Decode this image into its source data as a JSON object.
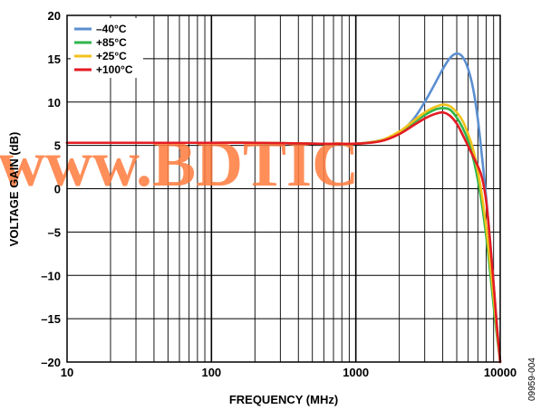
{
  "chart_data": {
    "type": "line",
    "xlabel": "FREQUENCY (MHz)",
    "ylabel": "VOLTAGE GAIN (dB)",
    "xscale": "log",
    "xlim": [
      10,
      10000
    ],
    "ylim": [
      -20,
      20
    ],
    "xticks": [
      10,
      100,
      1000,
      10000
    ],
    "xtick_labels": [
      "10",
      "100",
      "1000",
      "10000"
    ],
    "yticks": [
      20,
      15,
      10,
      5,
      0,
      -5,
      -10,
      -15,
      -20
    ],
    "ytick_labels": [
      "20",
      "15",
      "10",
      "5",
      "0",
      "–5",
      "–10",
      "–15",
      "–20"
    ],
    "grid": true,
    "legend_position": "top-left",
    "series": [
      {
        "name": "–40°C",
        "color": "#5b8fd0",
        "points": [
          [
            10,
            5.3
          ],
          [
            100,
            5.3
          ],
          [
            200,
            5.3
          ],
          [
            500,
            5.2
          ],
          [
            1000,
            5.2
          ],
          [
            1500,
            5.6
          ],
          [
            2000,
            6.5
          ],
          [
            2500,
            8.0
          ],
          [
            3000,
            10.0
          ],
          [
            3500,
            12.0
          ],
          [
            4000,
            13.8
          ],
          [
            4500,
            15.1
          ],
          [
            5000,
            15.6
          ],
          [
            5500,
            15.2
          ],
          [
            6000,
            13.8
          ],
          [
            6500,
            11.5
          ],
          [
            7000,
            8.0
          ],
          [
            7500,
            3.5
          ],
          [
            8000,
            -1.0
          ],
          [
            8500,
            -6.0
          ],
          [
            9000,
            -11.0
          ],
          [
            9500,
            -16.0
          ],
          [
            10000,
            -20.0
          ]
        ]
      },
      {
        "name": "+85°C",
        "color": "#2fb54a",
        "points": [
          [
            10,
            5.3
          ],
          [
            100,
            5.3
          ],
          [
            200,
            5.3
          ],
          [
            500,
            5.2
          ],
          [
            1000,
            5.2
          ],
          [
            1500,
            5.6
          ],
          [
            2000,
            6.5
          ],
          [
            2500,
            7.6
          ],
          [
            3000,
            8.5
          ],
          [
            3500,
            9.1
          ],
          [
            4000,
            9.3
          ],
          [
            4500,
            9.1
          ],
          [
            5000,
            8.2
          ],
          [
            5500,
            7.0
          ],
          [
            6000,
            5.5
          ],
          [
            6500,
            3.5
          ],
          [
            7000,
            1.0
          ],
          [
            7500,
            -2.0
          ],
          [
            8000,
            -5.5
          ],
          [
            8500,
            -9.5
          ],
          [
            9000,
            -13.5
          ],
          [
            9500,
            -17.0
          ],
          [
            10000,
            -20.0
          ]
        ]
      },
      {
        "name": "+25°C",
        "color": "#f2c21b",
        "points": [
          [
            10,
            5.3
          ],
          [
            100,
            5.3
          ],
          [
            200,
            5.3
          ],
          [
            500,
            5.2
          ],
          [
            1000,
            5.2
          ],
          [
            1500,
            5.6
          ],
          [
            2000,
            6.6
          ],
          [
            2500,
            7.8
          ],
          [
            3000,
            8.8
          ],
          [
            3500,
            9.4
          ],
          [
            4000,
            9.7
          ],
          [
            4500,
            9.5
          ],
          [
            5000,
            8.8
          ],
          [
            5500,
            7.8
          ],
          [
            6000,
            6.3
          ],
          [
            6500,
            4.5
          ],
          [
            7000,
            2.0
          ],
          [
            7500,
            -1.0
          ],
          [
            8000,
            -4.5
          ],
          [
            8500,
            -8.5
          ],
          [
            9000,
            -12.5
          ],
          [
            9500,
            -16.5
          ],
          [
            10000,
            -20.0
          ]
        ]
      },
      {
        "name": "+100°C",
        "color": "#e41b23",
        "points": [
          [
            10,
            5.3
          ],
          [
            100,
            5.3
          ],
          [
            200,
            5.3
          ],
          [
            500,
            5.2
          ],
          [
            1000,
            5.2
          ],
          [
            1500,
            5.5
          ],
          [
            2000,
            6.3
          ],
          [
            2500,
            7.3
          ],
          [
            3000,
            8.1
          ],
          [
            3500,
            8.6
          ],
          [
            4000,
            8.8
          ],
          [
            4500,
            8.4
          ],
          [
            5000,
            7.5
          ],
          [
            5500,
            6.2
          ],
          [
            6000,
            4.9
          ],
          [
            6500,
            3.7
          ],
          [
            7000,
            2.6
          ],
          [
            7500,
            1.2
          ],
          [
            8000,
            -1.5
          ],
          [
            8500,
            -6.0
          ],
          [
            9000,
            -11.0
          ],
          [
            9500,
            -16.0
          ],
          [
            10000,
            -20.0
          ]
        ]
      }
    ]
  },
  "watermark": "www.BDTIC",
  "figure_id": "09959-004"
}
